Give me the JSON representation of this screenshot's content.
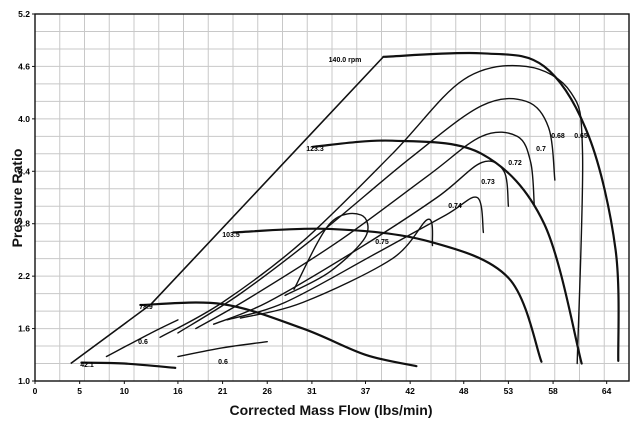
{
  "chart_data": {
    "type": "line",
    "xlabel": "Corrected Mass Flow (lbs/min)",
    "ylabel": "Pressure Ratio",
    "xlim": [
      0,
      66.5
    ],
    "ylim": [
      1.0,
      5.2
    ],
    "x_ticks": [
      "0",
      "5",
      "10",
      "16",
      "21",
      "26",
      "31",
      "37",
      "42",
      "48",
      "53",
      "58",
      "64"
    ],
    "x_tick_values": [
      0,
      5,
      10,
      16,
      21,
      26,
      31,
      37,
      42,
      48,
      53,
      58,
      64
    ],
    "y_ticks": [
      "1.0",
      "1.6",
      "2.2",
      "2.8",
      "3.4",
      "4.0",
      "4.6",
      "5.2"
    ],
    "y_tick_values": [
      1.0,
      1.6,
      2.2,
      2.8,
      3.4,
      4.0,
      4.6,
      5.2
    ],
    "grid": true,
    "surge_line": [
      [
        4,
        1.2
      ],
      [
        13,
        1.88
      ],
      [
        39,
        4.71
      ]
    ],
    "speed_lines": [
      {
        "label": "42.1",
        "points": [
          [
            5.2,
            1.21
          ],
          [
            10,
            1.2
          ],
          [
            15.7,
            1.15
          ]
        ]
      },
      {
        "label": "78.9",
        "points": [
          [
            11.8,
            1.87
          ],
          [
            21,
            1.88
          ],
          [
            30,
            1.6
          ],
          [
            37,
            1.3
          ],
          [
            42.7,
            1.17
          ]
        ]
      },
      {
        "label": "103.5",
        "points": [
          [
            22.2,
            2.7
          ],
          [
            33,
            2.74
          ],
          [
            44,
            2.6
          ],
          [
            53,
            2.18
          ],
          [
            56.7,
            1.22
          ]
        ]
      },
      {
        "label": "123.3",
        "points": [
          [
            31.1,
            3.68
          ],
          [
            40,
            3.75
          ],
          [
            50,
            3.6
          ],
          [
            57,
            2.8
          ],
          [
            61.2,
            1.2
          ]
        ]
      },
      {
        "label": "140.0 rpm",
        "points": [
          [
            39,
            4.71
          ],
          [
            50,
            4.75
          ],
          [
            57,
            4.6
          ],
          [
            62,
            3.8
          ],
          [
            65,
            2.5
          ],
          [
            65.3,
            1.23
          ]
        ]
      }
    ],
    "efficiency_islands": [
      {
        "label": "0.6",
        "points": [
          [
            8,
            1.28
          ],
          [
            13,
            1.55
          ],
          [
            16,
            1.7
          ]
        ]
      },
      {
        "label": "0.6",
        "points": [
          [
            16,
            1.28
          ],
          [
            21,
            1.38
          ],
          [
            26,
            1.45
          ]
        ]
      },
      {
        "label": "0.65",
        "points": [
          [
            14,
            1.5
          ],
          [
            21,
            1.9
          ],
          [
            30,
            2.6
          ],
          [
            40,
            3.6
          ],
          [
            48,
            4.45
          ],
          [
            55,
            4.6
          ],
          [
            60,
            4.3
          ],
          [
            61.3,
            3.6
          ],
          [
            60.7,
            1.2
          ]
        ]
      },
      {
        "label": "0.68",
        "points": [
          [
            16,
            1.55
          ],
          [
            23,
            2.0
          ],
          [
            32,
            2.7
          ],
          [
            42,
            3.55
          ],
          [
            50,
            4.15
          ],
          [
            55,
            4.2
          ],
          [
            57.5,
            3.9
          ],
          [
            58.2,
            3.3
          ]
        ]
      },
      {
        "label": "0.7",
        "points": [
          [
            18,
            1.6
          ],
          [
            24,
            1.95
          ],
          [
            34,
            2.6
          ],
          [
            44,
            3.35
          ],
          [
            50,
            3.8
          ],
          [
            54,
            3.8
          ],
          [
            55.5,
            3.5
          ],
          [
            55.9,
            3.0
          ]
        ]
      },
      {
        "label": "0.72",
        "points": [
          [
            20,
            1.65
          ],
          [
            26,
            1.9
          ],
          [
            36,
            2.5
          ],
          [
            45,
            3.1
          ],
          [
            50,
            3.5
          ],
          [
            52.5,
            3.4
          ],
          [
            53,
            3.0
          ]
        ]
      },
      {
        "label": "0.73",
        "points": [
          [
            21.5,
            1.7
          ],
          [
            28,
            1.9
          ],
          [
            38,
            2.45
          ],
          [
            46,
            2.9
          ],
          [
            49.5,
            3.1
          ],
          [
            50.2,
            2.7
          ]
        ]
      },
      {
        "label": "0.74",
        "points": [
          [
            23,
            1.72
          ],
          [
            30,
            1.9
          ],
          [
            40,
            2.4
          ],
          [
            44,
            2.85
          ],
          [
            44.5,
            2.55
          ]
        ]
      },
      {
        "label": "0.75",
        "points": [
          [
            28,
            1.98
          ],
          [
            33,
            2.25
          ],
          [
            37,
            2.65
          ],
          [
            36.5,
            2.9
          ],
          [
            33,
            2.8
          ],
          [
            29,
            2.05
          ]
        ]
      }
    ],
    "annotations": [
      "140.0 rpm",
      "123.3",
      "103.5",
      "78.9",
      "42.1",
      "0.6",
      "0.6",
      "0.65",
      "0.68",
      "0.7",
      "0.72",
      "0.73",
      "0.74",
      "0.75"
    ]
  }
}
